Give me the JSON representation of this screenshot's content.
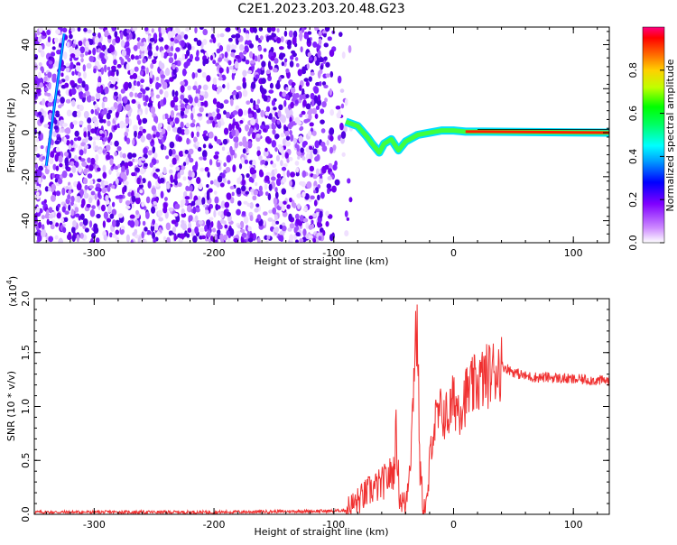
{
  "title": "C2E1.2023.203.20.48.G23",
  "chart_data": [
    {
      "type": "heatmap",
      "xlabel": "Height of straight line (km)",
      "ylabel": "Frequency (Hz)",
      "xlim": [
        -350,
        130
      ],
      "ylim": [
        -50,
        48
      ],
      "xticks": [
        "-300",
        "-200",
        "-100",
        "0",
        "100"
      ],
      "yticks": [
        "-40",
        "-20",
        "0",
        "20",
        "40"
      ],
      "tracks": [
        {
          "name": "satellite-carrier",
          "points": [
            [
              -90,
              5
            ],
            [
              -80,
              3
            ],
            [
              -72,
              -2
            ],
            [
              -68,
              -5
            ],
            [
              -62,
              -9
            ],
            [
              -58,
              -5
            ],
            [
              -52,
              -3
            ],
            [
              -46,
              -8
            ],
            [
              -40,
              -4
            ],
            [
              -30,
              -1
            ],
            [
              -20,
              0
            ],
            [
              -10,
              1
            ],
            [
              0,
              1
            ],
            [
              10,
              0.5
            ],
            [
              25,
              0.5
            ],
            [
              130,
              0
            ]
          ]
        },
        {
          "name": "bright-diagonal",
          "points": [
            [
              -340,
              -15
            ],
            [
              -325,
              45
            ]
          ]
        }
      ],
      "colorbar": {
        "label": "Normalized spectral amplitude",
        "range": [
          0.0,
          1.0
        ],
        "ticks": [
          "0.0",
          "0.2",
          "0.4",
          "0.6",
          "0.8"
        ]
      }
    },
    {
      "type": "line",
      "xlabel": "Height of straight line (km)",
      "ylabel": "SNR (10 * v/v)",
      "y_scale_label": "(x10",
      "y_scale_exp": "4",
      "y_scale_close": ")",
      "xlim": [
        -350,
        130
      ],
      "ylim": [
        0.0,
        2.0
      ],
      "xticks": [
        "-300",
        "-200",
        "-100",
        "0",
        "100"
      ],
      "yticks": [
        "0.0",
        "0.5",
        "1.0",
        "1.5",
        "2.0"
      ],
      "color": "#f03030",
      "x": [
        -350,
        -300,
        -200,
        -110,
        -100,
        -90,
        -80,
        -70,
        -60,
        -50,
        -48,
        -45,
        -40,
        -35,
        -32,
        -30,
        -28,
        -25,
        -22,
        -20,
        -18,
        -15,
        -10,
        -5,
        0,
        5,
        10,
        20,
        30,
        40,
        50,
        60,
        70,
        80,
        90,
        100,
        110,
        120,
        130
      ],
      "values": [
        0.02,
        0.02,
        0.02,
        0.03,
        0.03,
        0.04,
        0.12,
        0.22,
        0.28,
        0.4,
        0.75,
        0.15,
        0.08,
        0.7,
        1.7,
        1.6,
        0.4,
        0.05,
        0.1,
        0.45,
        0.75,
        0.85,
        0.95,
        0.9,
        1.05,
        1.0,
        1.1,
        1.22,
        1.3,
        1.38,
        1.32,
        1.28,
        1.27,
        1.27,
        1.26,
        1.25,
        1.25,
        1.24,
        1.24
      ]
    }
  ]
}
